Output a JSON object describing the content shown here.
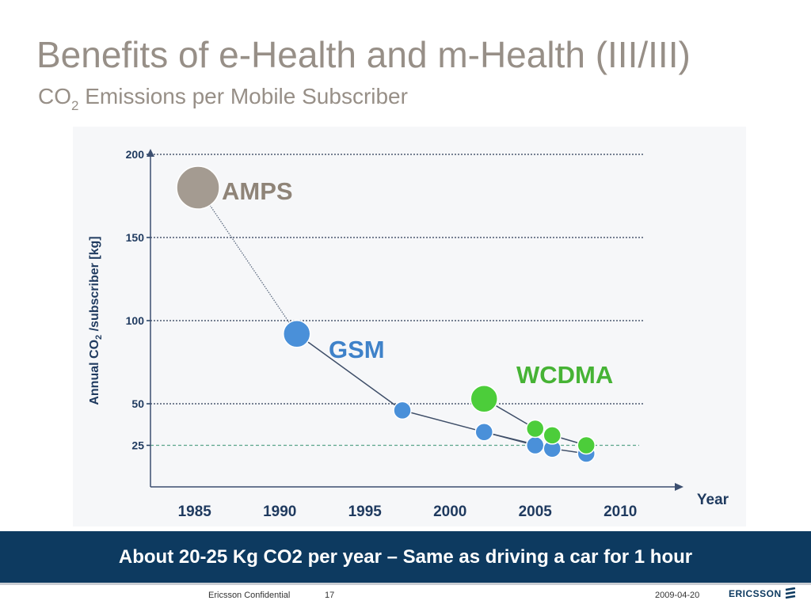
{
  "slide": {
    "title": "Benefits of e-Health and m-Health (III/III)",
    "subtitle_prefix": "CO",
    "subtitle_sub": "2",
    "subtitle_rest": " Emissions per Mobile Subscriber",
    "banner": "About 20-25 Kg CO2 per year – Same as driving a car for 1 hour",
    "footer_confidential": "Ericsson Confidential",
    "footer_page": "17",
    "footer_date": "2009-04-20",
    "logo_text": "ERICSSON"
  },
  "chart_data": {
    "type": "scatter",
    "ylabel_prefix": "Annual CO",
    "ylabel_sub": "2",
    "ylabel_rest": " /subscriber [kg]",
    "xlabel": "Year",
    "x_ticks": [
      1985,
      1990,
      1995,
      2000,
      2005,
      2010
    ],
    "y_ticks": [
      25,
      50,
      100,
      150,
      200
    ],
    "xlim": [
      1982.5,
      2012.5
    ],
    "ylim": [
      0,
      205
    ],
    "grid": "horizontal dotted at y ticks",
    "series": [
      {
        "name": "AMPS",
        "color": "#a49b91",
        "label_color": "#8f8478",
        "points": [
          {
            "x": 1985.2,
            "y": 180,
            "size": "large"
          },
          {
            "x": 1991.0,
            "y": 92,
            "size": "medium"
          }
        ]
      },
      {
        "name": "GSM",
        "color": "#4a90d9",
        "label_color": "#3f82c9",
        "points": [
          {
            "x": 1991.0,
            "y": 92,
            "size": "medium"
          },
          {
            "x": 1997.2,
            "y": 46,
            "size": "small"
          },
          {
            "x": 2002.0,
            "y": 33,
            "size": "small"
          },
          {
            "x": 2005.0,
            "y": 25,
            "size": "small"
          },
          {
            "x": 2006.0,
            "y": 23,
            "size": "small"
          },
          {
            "x": 2008.0,
            "y": 20,
            "size": "small"
          }
        ]
      },
      {
        "name": "WCDMA",
        "color": "#4ccd3a",
        "label_color": "#46b335",
        "points": [
          {
            "x": 2002.0,
            "y": 53,
            "size": "medium"
          },
          {
            "x": 2005.0,
            "y": 35,
            "size": "small"
          },
          {
            "x": 2006.0,
            "y": 31,
            "size": "small"
          },
          {
            "x": 2008.0,
            "y": 25,
            "size": "small"
          }
        ]
      }
    ]
  }
}
